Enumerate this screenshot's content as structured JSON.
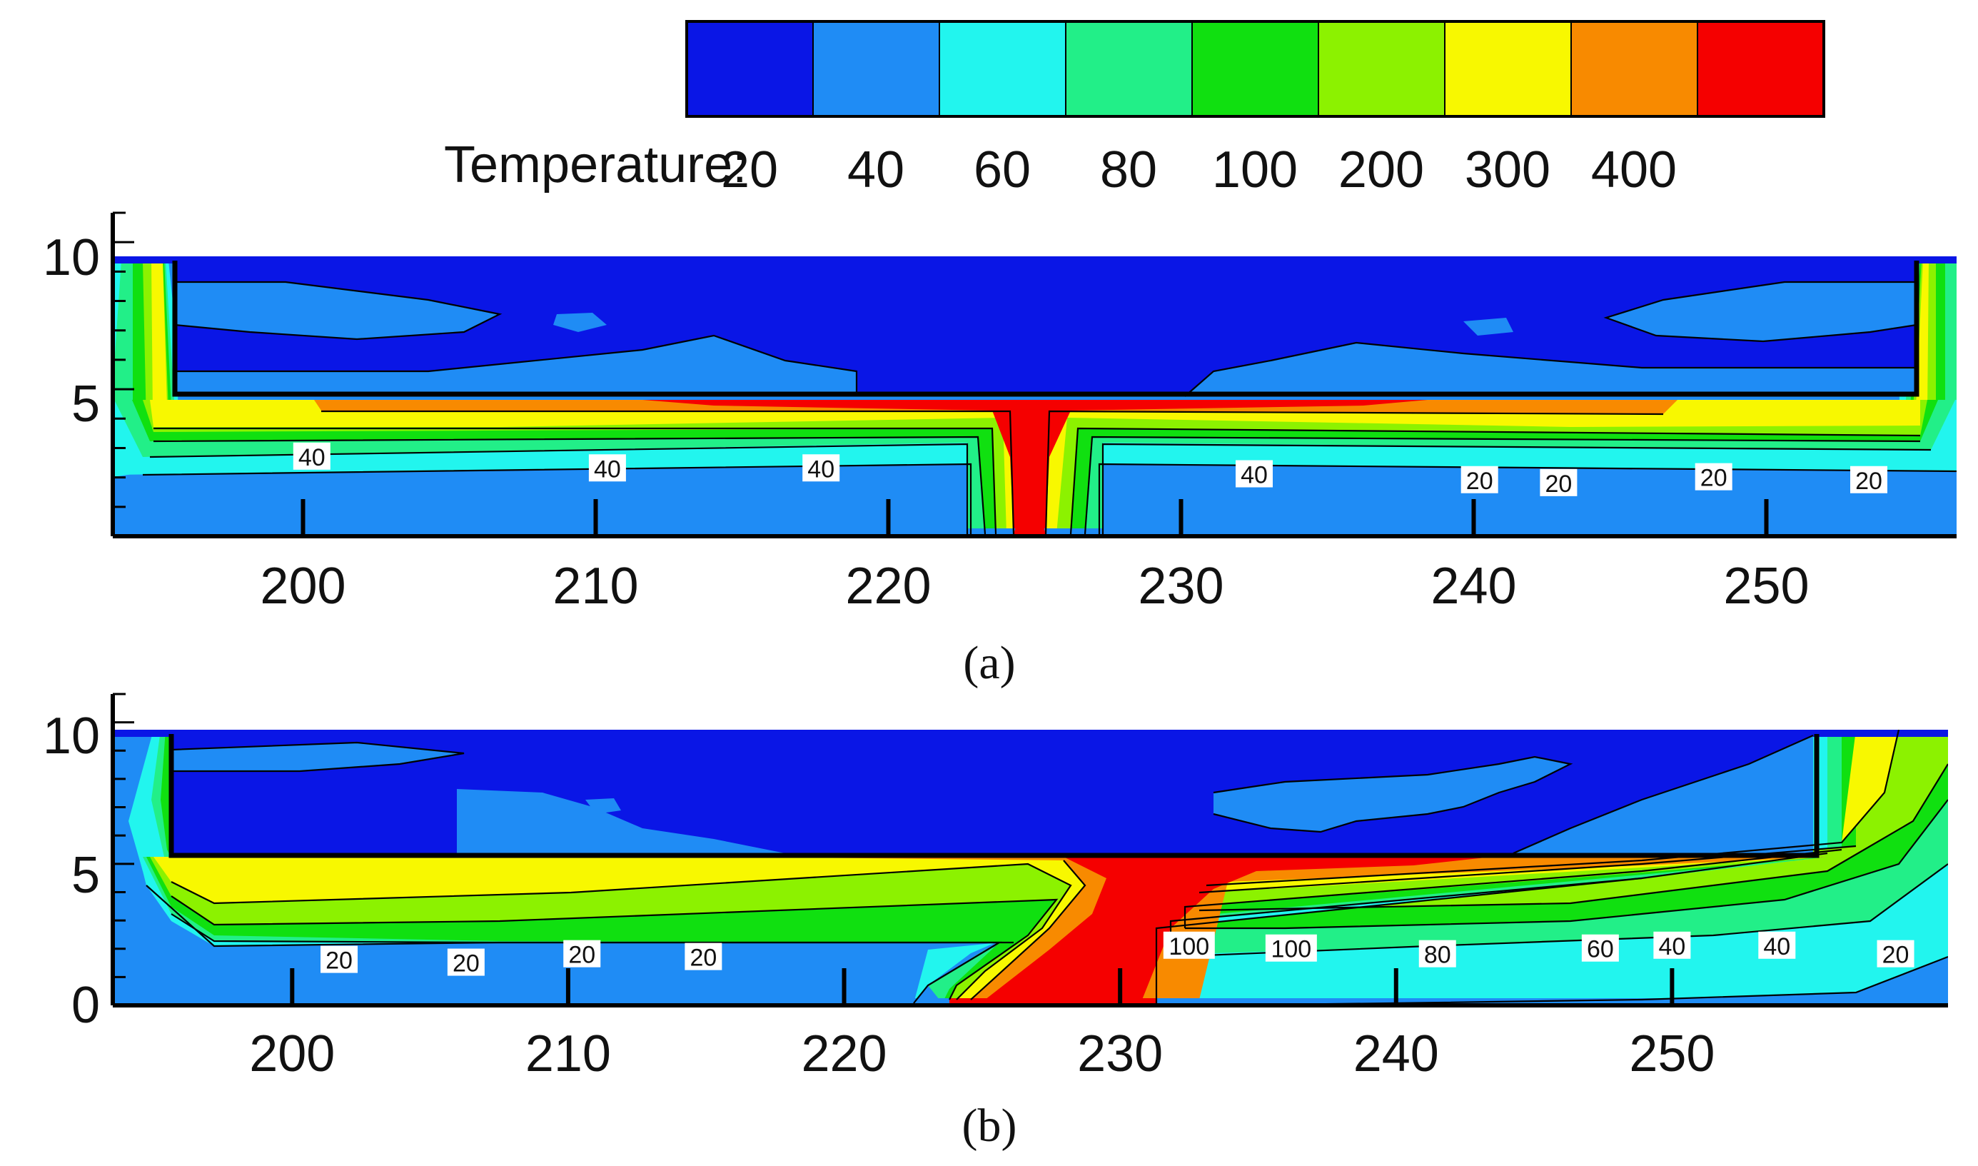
{
  "legend": {
    "title": "Temperature:",
    "ticks": [
      "20",
      "40",
      "60",
      "80",
      "100",
      "200",
      "300",
      "400"
    ],
    "colors": [
      "#0a16e6",
      "#1f8cf5",
      "#22f5ee",
      "#22ef88",
      "#10e010",
      "#8cf200",
      "#f8f800",
      "#f88a00",
      "#f50000"
    ]
  },
  "colors": {
    "c20": "#0a16e6",
    "c40": "#1f8cf5",
    "c60": "#22f5ee",
    "c80": "#22ef88",
    "c100": "#10e010",
    "c200": "#8cf200",
    "c300": "#f8f800",
    "c400": "#f88a00",
    "cmax": "#f50000"
  },
  "chart_data": [
    {
      "type": "heatmap",
      "panel_label": "(a)",
      "x_ticks": [
        "200",
        "210",
        "220",
        "230",
        "240",
        "250"
      ],
      "y_ticks": [
        "10",
        "5"
      ],
      "x_range": [
        193.5,
        256.5
      ],
      "y_range": [
        0,
        11
      ],
      "contour_labels": [
        {
          "text": "40",
          "x": 200.3,
          "y": 2.7
        },
        {
          "text": "40",
          "x": 210.4,
          "y": 2.3
        },
        {
          "text": "40",
          "x": 217.7,
          "y": 2.3
        },
        {
          "text": "40",
          "x": 232.5,
          "y": 2.1
        },
        {
          "text": "20",
          "x": 240.2,
          "y": 1.9
        },
        {
          "text": "20",
          "x": 242.9,
          "y": 1.8
        },
        {
          "text": "20",
          "x": 248.2,
          "y": 2.0
        },
        {
          "text": "20",
          "x": 253.5,
          "y": 1.9
        }
      ]
    },
    {
      "type": "heatmap",
      "panel_label": "(b)",
      "x_ticks": [
        "200",
        "210",
        "220",
        "230",
        "240",
        "250"
      ],
      "y_ticks": [
        "10",
        "5",
        "0"
      ],
      "x_range": [
        193.5,
        260
      ],
      "y_range": [
        0,
        11
      ],
      "contour_labels": [
        {
          "text": "20",
          "x": 201.7,
          "y": 1.6
        },
        {
          "text": "20",
          "x": 206.3,
          "y": 1.5
        },
        {
          "text": "20",
          "x": 210.5,
          "y": 1.8
        },
        {
          "text": "20",
          "x": 214.9,
          "y": 1.7
        },
        {
          "text": "100",
          "x": 232.5,
          "y": 2.1
        },
        {
          "text": "100",
          "x": 236.2,
          "y": 2.0
        },
        {
          "text": "80",
          "x": 241.5,
          "y": 1.8
        },
        {
          "text": "60",
          "x": 247.4,
          "y": 2.0
        },
        {
          "text": "40",
          "x": 250.0,
          "y": 2.1
        },
        {
          "text": "40",
          "x": 253.8,
          "y": 2.1
        },
        {
          "text": "20",
          "x": 258.1,
          "y": 1.8
        }
      ]
    }
  ]
}
